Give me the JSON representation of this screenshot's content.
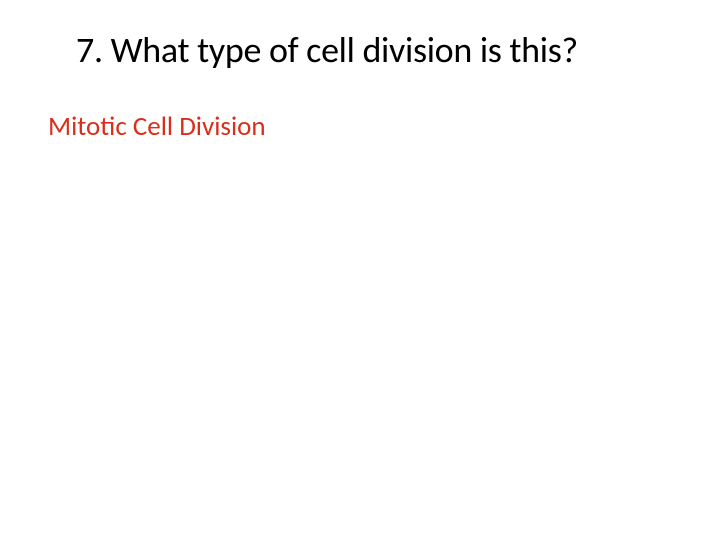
{
  "slide": {
    "title": "7.  What type of cell division is this?",
    "answer": "Mitotic Cell Division",
    "title_color": "#000000",
    "answer_color": "#d92e1c",
    "background_color": "#ffffff",
    "title_fontsize": 36,
    "answer_fontsize": 27
  }
}
